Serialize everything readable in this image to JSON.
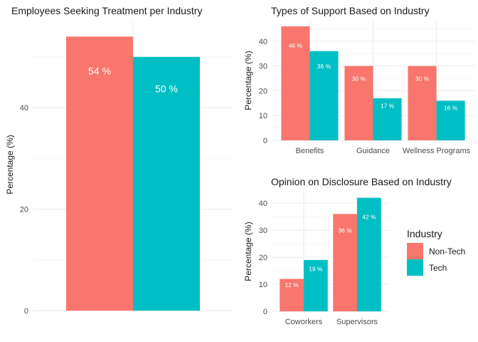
{
  "colors": {
    "non_tech": "#F8766D",
    "tech": "#00BFC4"
  },
  "legend": {
    "title": "Industry",
    "entries": [
      {
        "label": "Non-Tech",
        "color": "#F8766D"
      },
      {
        "label": "Tech",
        "color": "#00BFC4"
      }
    ]
  },
  "chart_data": [
    {
      "type": "bar",
      "title": "Employees Seeking Treatment per Industry",
      "xlabel": "",
      "ylabel": "Percentage (%)",
      "ylim": [
        0,
        57
      ],
      "yticks": [
        0,
        20,
        40
      ],
      "categories": [
        ""
      ],
      "series": [
        {
          "name": "Non-Tech",
          "values": [
            54
          ],
          "labels": [
            "54 %"
          ]
        },
        {
          "name": "Tech",
          "values": [
            50
          ],
          "labels": [
            "50 %"
          ]
        }
      ],
      "grid": true
    },
    {
      "type": "bar",
      "title": "Types of Support Based on Industry",
      "xlabel": "",
      "ylabel": "Percentage (%)",
      "ylim": [
        0,
        48
      ],
      "yticks": [
        0,
        10,
        20,
        30,
        40
      ],
      "categories": [
        "Benefits",
        "Guidance",
        "Wellness Programs"
      ],
      "series": [
        {
          "name": "Non-Tech",
          "values": [
            46,
            30,
            30
          ],
          "labels": [
            "46 %",
            "30 %",
            "30 %"
          ]
        },
        {
          "name": "Tech",
          "values": [
            36,
            17,
            16
          ],
          "labels": [
            "36 %",
            "17 %",
            "16 %"
          ]
        }
      ],
      "grid": true
    },
    {
      "type": "bar",
      "title": "Opinion on Disclosure Based on Industry",
      "xlabel": "",
      "ylabel": "Percentage (%)",
      "ylim": [
        0,
        44
      ],
      "yticks": [
        0,
        10,
        20,
        30,
        40
      ],
      "categories": [
        "Coworkers",
        "Supervisors"
      ],
      "series": [
        {
          "name": "Non-Tech",
          "values": [
            12,
            36
          ],
          "labels": [
            "12 %",
            "36 %"
          ]
        },
        {
          "name": "Tech",
          "values": [
            19,
            42
          ],
          "labels": [
            "19 %",
            "42 %"
          ]
        }
      ],
      "grid": true,
      "legend": "right"
    }
  ]
}
